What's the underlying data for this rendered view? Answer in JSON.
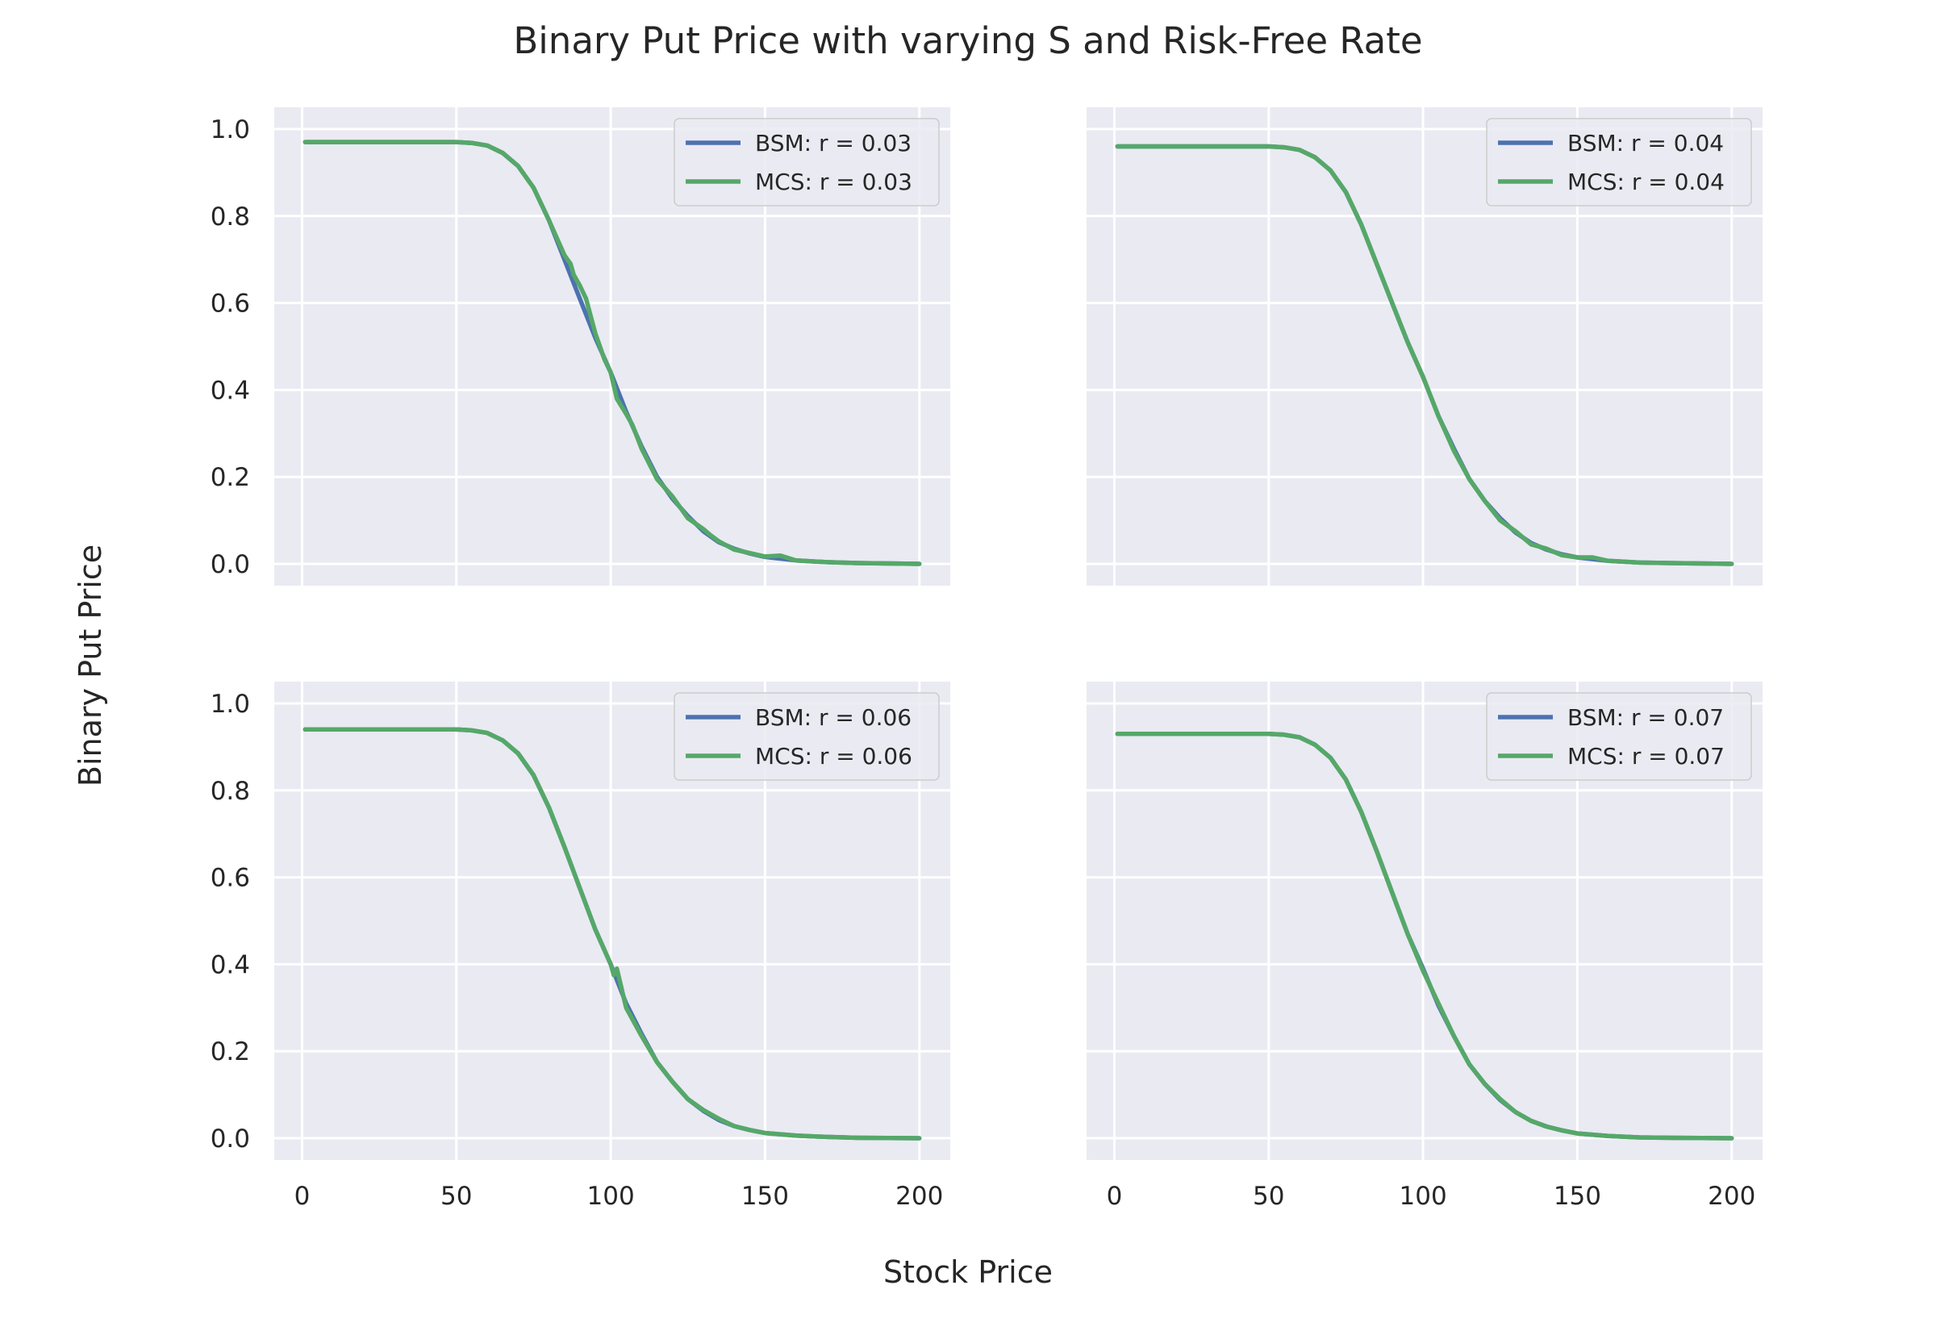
{
  "figure": {
    "title": "Binary Put Price with varying S and Risk-Free Rate",
    "xlabel": "Stock Price",
    "ylabel": "Binary Put Price"
  },
  "style": {
    "background": "#eaeaf2",
    "grid": "#ffffff",
    "bsm_color": "#4c72b0",
    "mcs_color": "#55a868",
    "text": "#262626"
  },
  "chart_data": [
    {
      "type": "line",
      "rate": 0.03,
      "xlim": [
        -9,
        210
      ],
      "ylim": [
        -0.05,
        1.05
      ],
      "xticks": [
        "0",
        "50",
        "100",
        "150",
        "200"
      ],
      "yticks": [
        "0.0",
        "0.2",
        "0.4",
        "0.6",
        "0.8",
        "1.0"
      ],
      "show_xticks": false,
      "show_yticks": true,
      "legend_position": "top-right",
      "series": [
        {
          "name": "BSM: r = 0.03",
          "color": "#4c72b0",
          "x": [
            1,
            10,
            20,
            30,
            40,
            50,
            55,
            60,
            65,
            70,
            75,
            80,
            85,
            90,
            95,
            100,
            105,
            110,
            115,
            120,
            125,
            130,
            135,
            140,
            145,
            150,
            160,
            170,
            180,
            190,
            200
          ],
          "y": [
            0.97,
            0.97,
            0.97,
            0.97,
            0.97,
            0.97,
            0.968,
            0.962,
            0.945,
            0.915,
            0.865,
            0.79,
            0.7,
            0.61,
            0.52,
            0.44,
            0.35,
            0.27,
            0.2,
            0.15,
            0.11,
            0.075,
            0.05,
            0.035,
            0.024,
            0.016,
            0.008,
            0.004,
            0.002,
            0.001,
            0.0
          ]
        },
        {
          "name": "MCS: r = 0.03",
          "color": "#55a868",
          "x": [
            1,
            10,
            20,
            30,
            40,
            50,
            55,
            60,
            65,
            70,
            75,
            80,
            85,
            87,
            88,
            90,
            92,
            95,
            98,
            100,
            102,
            105,
            107,
            110,
            115,
            120,
            125,
            130,
            132,
            135,
            140,
            145,
            150,
            155,
            160,
            170,
            180,
            190,
            200
          ],
          "y": [
            0.97,
            0.97,
            0.97,
            0.97,
            0.97,
            0.97,
            0.968,
            0.962,
            0.945,
            0.915,
            0.865,
            0.79,
            0.71,
            0.69,
            0.665,
            0.64,
            0.61,
            0.53,
            0.47,
            0.44,
            0.38,
            0.345,
            0.32,
            0.265,
            0.195,
            0.155,
            0.105,
            0.08,
            0.068,
            0.052,
            0.033,
            0.025,
            0.017,
            0.019,
            0.008,
            0.004,
            0.002,
            0.001,
            0.0
          ]
        }
      ]
    },
    {
      "type": "line",
      "rate": 0.04,
      "xlim": [
        -9,
        210
      ],
      "ylim": [
        -0.05,
        1.05
      ],
      "xticks": [
        "0",
        "50",
        "100",
        "150",
        "200"
      ],
      "yticks": [
        "0.0",
        "0.2",
        "0.4",
        "0.6",
        "0.8",
        "1.0"
      ],
      "show_xticks": false,
      "show_yticks": false,
      "legend_position": "top-right",
      "series": [
        {
          "name": "BSM: r = 0.04",
          "color": "#4c72b0",
          "x": [
            1,
            10,
            20,
            30,
            40,
            50,
            55,
            60,
            65,
            70,
            75,
            80,
            85,
            90,
            95,
            100,
            105,
            110,
            115,
            120,
            125,
            130,
            135,
            140,
            145,
            150,
            160,
            170,
            180,
            190,
            200
          ],
          "y": [
            0.96,
            0.96,
            0.96,
            0.96,
            0.96,
            0.96,
            0.958,
            0.952,
            0.935,
            0.905,
            0.855,
            0.78,
            0.69,
            0.6,
            0.51,
            0.43,
            0.34,
            0.265,
            0.195,
            0.145,
            0.105,
            0.072,
            0.048,
            0.033,
            0.022,
            0.015,
            0.007,
            0.003,
            0.002,
            0.001,
            0.0
          ]
        },
        {
          "name": "MCS: r = 0.04",
          "color": "#55a868",
          "x": [
            1,
            10,
            20,
            30,
            40,
            50,
            55,
            60,
            65,
            70,
            75,
            80,
            85,
            90,
            95,
            100,
            105,
            110,
            115,
            120,
            125,
            130,
            135,
            140,
            145,
            150,
            155,
            160,
            170,
            180,
            190,
            200
          ],
          "y": [
            0.96,
            0.96,
            0.96,
            0.96,
            0.96,
            0.96,
            0.958,
            0.952,
            0.935,
            0.905,
            0.855,
            0.78,
            0.69,
            0.6,
            0.51,
            0.43,
            0.34,
            0.26,
            0.195,
            0.145,
            0.1,
            0.075,
            0.045,
            0.035,
            0.02,
            0.015,
            0.015,
            0.007,
            0.003,
            0.002,
            0.001,
            0.0
          ]
        }
      ]
    },
    {
      "type": "line",
      "rate": 0.06,
      "xlim": [
        -9,
        210
      ],
      "ylim": [
        -0.05,
        1.05
      ],
      "xticks": [
        "0",
        "50",
        "100",
        "150",
        "200"
      ],
      "yticks": [
        "0.0",
        "0.2",
        "0.4",
        "0.6",
        "0.8",
        "1.0"
      ],
      "show_xticks": true,
      "show_yticks": true,
      "legend_position": "top-right",
      "series": [
        {
          "name": "BSM: r = 0.06",
          "color": "#4c72b0",
          "x": [
            1,
            10,
            20,
            30,
            40,
            50,
            55,
            60,
            65,
            70,
            75,
            80,
            85,
            90,
            95,
            100,
            105,
            110,
            115,
            120,
            125,
            130,
            135,
            140,
            145,
            150,
            160,
            170,
            180,
            190,
            200
          ],
          "y": [
            0.94,
            0.94,
            0.94,
            0.94,
            0.94,
            0.94,
            0.938,
            0.932,
            0.915,
            0.885,
            0.835,
            0.76,
            0.67,
            0.575,
            0.48,
            0.4,
            0.31,
            0.24,
            0.175,
            0.13,
            0.09,
            0.063,
            0.042,
            0.028,
            0.019,
            0.012,
            0.006,
            0.003,
            0.001,
            0.0005,
            0.0
          ]
        },
        {
          "name": "MCS: r = 0.06",
          "color": "#55a868",
          "x": [
            1,
            10,
            20,
            30,
            40,
            50,
            55,
            60,
            65,
            70,
            75,
            80,
            85,
            90,
            95,
            100,
            101,
            102,
            105,
            110,
            115,
            120,
            125,
            130,
            135,
            140,
            145,
            150,
            160,
            170,
            180,
            190,
            200
          ],
          "y": [
            0.94,
            0.94,
            0.94,
            0.94,
            0.94,
            0.94,
            0.938,
            0.932,
            0.915,
            0.885,
            0.835,
            0.76,
            0.67,
            0.575,
            0.48,
            0.4,
            0.375,
            0.39,
            0.3,
            0.235,
            0.175,
            0.13,
            0.09,
            0.065,
            0.045,
            0.028,
            0.019,
            0.012,
            0.006,
            0.003,
            0.001,
            0.0005,
            0.0
          ]
        }
      ]
    },
    {
      "type": "line",
      "rate": 0.07,
      "xlim": [
        -9,
        210
      ],
      "ylim": [
        -0.05,
        1.05
      ],
      "xticks": [
        "0",
        "50",
        "100",
        "150",
        "200"
      ],
      "yticks": [
        "0.0",
        "0.2",
        "0.4",
        "0.6",
        "0.8",
        "1.0"
      ],
      "show_xticks": true,
      "show_yticks": false,
      "legend_position": "top-right",
      "series": [
        {
          "name": "BSM: r = 0.07",
          "color": "#4c72b0",
          "x": [
            1,
            10,
            20,
            30,
            40,
            50,
            55,
            60,
            65,
            70,
            75,
            80,
            85,
            90,
            95,
            100,
            105,
            110,
            115,
            120,
            125,
            130,
            135,
            140,
            145,
            150,
            160,
            170,
            180,
            190,
            200
          ],
          "y": [
            0.93,
            0.93,
            0.93,
            0.93,
            0.93,
            0.93,
            0.928,
            0.922,
            0.905,
            0.875,
            0.825,
            0.75,
            0.66,
            0.565,
            0.47,
            0.39,
            0.305,
            0.235,
            0.17,
            0.125,
            0.088,
            0.06,
            0.04,
            0.027,
            0.018,
            0.011,
            0.005,
            0.002,
            0.001,
            0.0005,
            0.0
          ]
        },
        {
          "name": "MCS: r = 0.07",
          "color": "#55a868",
          "x": [
            1,
            10,
            20,
            30,
            40,
            50,
            55,
            60,
            65,
            70,
            75,
            80,
            85,
            90,
            95,
            100,
            105,
            110,
            115,
            120,
            125,
            130,
            135,
            140,
            145,
            150,
            160,
            170,
            180,
            190,
            200
          ],
          "y": [
            0.93,
            0.93,
            0.93,
            0.93,
            0.93,
            0.93,
            0.928,
            0.922,
            0.905,
            0.875,
            0.825,
            0.75,
            0.66,
            0.565,
            0.47,
            0.385,
            0.31,
            0.235,
            0.17,
            0.125,
            0.09,
            0.06,
            0.04,
            0.027,
            0.018,
            0.011,
            0.005,
            0.002,
            0.001,
            0.0005,
            0.0
          ]
        }
      ]
    }
  ]
}
